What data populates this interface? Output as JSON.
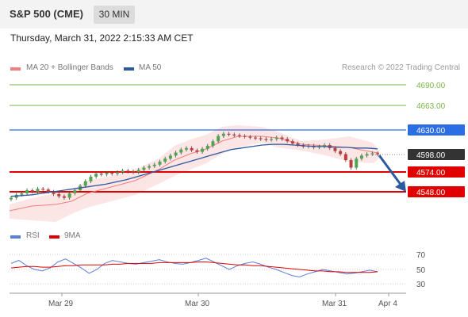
{
  "header": {
    "title": "S&P 500 (CME)",
    "timeframe": "30 MIN"
  },
  "datetime": "Thursday, March 31, 2022 2:15:33 AM CET",
  "legend": {
    "ma20": {
      "label": "MA 20 + Bollinger Bands",
      "color": "#f08080"
    },
    "ma50": {
      "label": "MA 50",
      "color": "#2c5aa0"
    }
  },
  "copyright": "Research © 2022 Trading Central",
  "levels": [
    {
      "value": "4690.00",
      "kind": "target",
      "color": "#7ab648"
    },
    {
      "value": "4663.00",
      "kind": "target",
      "color": "#7ab648"
    },
    {
      "value": "4630.00",
      "kind": "resistance",
      "color": "#2b6de5"
    },
    {
      "value": "4598.00",
      "kind": "last-price",
      "color": "#333333"
    },
    {
      "value": "4574.00",
      "kind": "support",
      "color": "#e00000"
    },
    {
      "value": "4548.00",
      "kind": "support",
      "color": "#e00000"
    }
  ],
  "rsi_legend": {
    "rsi": {
      "label": "RSI",
      "color": "#5b7fd8"
    },
    "ma9": {
      "label": "9MA",
      "color": "#e00000"
    }
  },
  "rsi_levels": [
    "70",
    "50",
    "30"
  ],
  "xaxis": [
    "Mar 29",
    "Mar 30",
    "Mar 31",
    "Apr 4"
  ],
  "chart_data": {
    "type": "candlestick",
    "close_prices": [
      4540,
      4544,
      4546,
      4550,
      4548,
      4552,
      4551,
      4548,
      4545,
      4542,
      4540,
      4546,
      4550,
      4556,
      4562,
      4568,
      4572,
      4571,
      4573,
      4572,
      4574,
      4576,
      4575,
      4574,
      4577,
      4580,
      4582,
      4584,
      4588,
      4592,
      4596,
      4600,
      4604,
      4606,
      4603,
      4601,
      4605,
      4609,
      4615,
      4622,
      4625,
      4624,
      4623,
      4622,
      4621,
      4620,
      4619,
      4618,
      4617,
      4618,
      4620,
      4618,
      4615,
      4612,
      4610,
      4608,
      4609,
      4607,
      4608,
      4610,
      4606,
      4602,
      4598,
      4590,
      4580,
      4592,
      4596,
      4598,
      4599,
      4598
    ],
    "ma50_line": [
      4542,
      4543,
      4544,
      4546,
      4548,
      4550,
      4552,
      4554,
      4556,
      4558,
      4561,
      4564,
      4568,
      4572,
      4576,
      4580,
      4584,
      4588,
      4592,
      4596,
      4600,
      4604,
      4606,
      4608,
      4610,
      4611,
      4611,
      4610,
      4609,
      4608,
      4608,
      4607,
      4607,
      4606,
      4606,
      4605
    ],
    "rsi": [
      58,
      62,
      55,
      50,
      48,
      52,
      60,
      64,
      58,
      52,
      45,
      50,
      58,
      62,
      60,
      58,
      57,
      59,
      61,
      63,
      60,
      58,
      57,
      59,
      62,
      65,
      60,
      55,
      50,
      55,
      58,
      60,
      57,
      53,
      50,
      46,
      42,
      40,
      44,
      47,
      50,
      48,
      46,
      44,
      45,
      47,
      49,
      47
    ],
    "rsi_ma9": [
      52,
      53,
      54,
      54,
      53,
      53,
      54,
      55,
      55,
      56,
      56,
      56,
      56,
      57,
      57,
      58,
      58,
      58,
      58,
      59,
      59,
      59,
      59,
      59,
      60,
      60,
      59,
      58,
      57,
      56,
      56,
      55,
      55,
      54,
      53,
      52,
      51,
      50,
      49,
      48,
      48,
      47,
      47,
      46,
      46,
      46,
      46,
      47
    ]
  }
}
